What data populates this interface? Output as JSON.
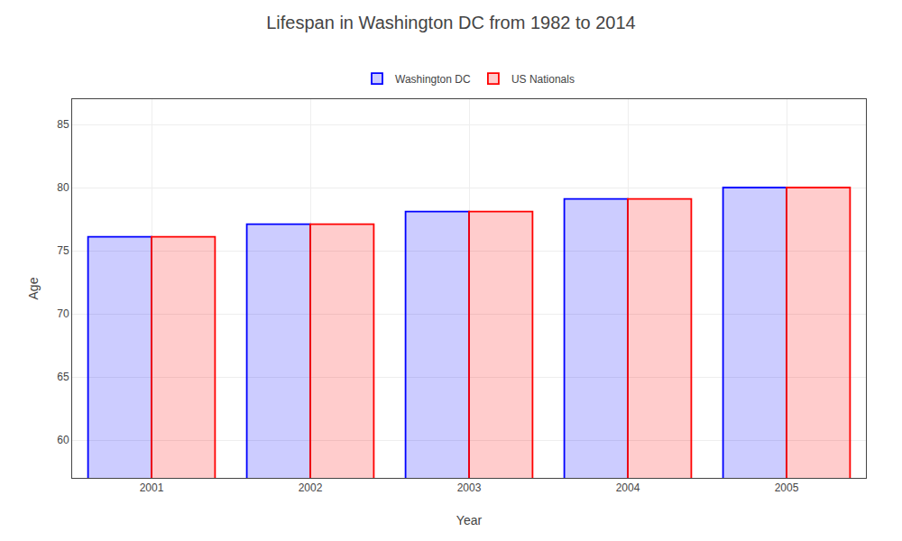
{
  "chart_data": {
    "type": "bar",
    "title": "Lifespan in Washington DC from 1982 to 2014",
    "xlabel": "Year",
    "ylabel": "Age",
    "categories": [
      "2001",
      "2002",
      "2003",
      "2004",
      "2005"
    ],
    "series": [
      {
        "name": "Washington DC",
        "color": "#0000ff",
        "values": [
          76.1,
          77.1,
          78.1,
          79.1,
          80.0
        ]
      },
      {
        "name": "US Nationals",
        "color": "#ff0000",
        "values": [
          76.1,
          77.1,
          78.1,
          79.1,
          80.0
        ]
      }
    ],
    "ylim": [
      57,
      87
    ],
    "yticks": [
      60,
      65,
      70,
      75,
      80,
      85
    ],
    "grid": true,
    "legend": "top"
  }
}
